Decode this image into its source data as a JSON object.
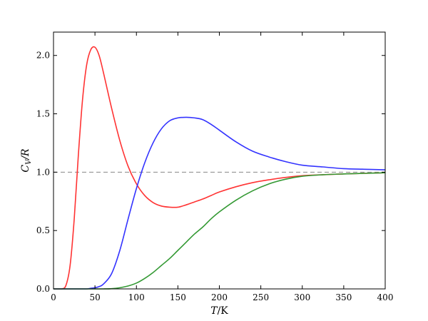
{
  "chart_data": {
    "type": "line",
    "xlabel": "T/K",
    "xlabel_parts": {
      "var": "T",
      "unit": "/K"
    },
    "ylabel": "C_V/R",
    "ylabel_parts": {
      "var": "C",
      "sub": "V",
      "tail": "/R"
    },
    "xlim": [
      0,
      400
    ],
    "ylim": [
      0,
      2.2
    ],
    "xticks": [
      0,
      50,
      100,
      150,
      200,
      250,
      300,
      350,
      400
    ],
    "xtick_labels": [
      "0",
      "50",
      "100",
      "150",
      "200",
      "250",
      "300",
      "350",
      "400"
    ],
    "yticks": [
      0.0,
      0.5,
      1.0,
      1.5,
      2.0
    ],
    "ytick_labels": [
      "0.0",
      "0.5",
      "1.0",
      "1.5",
      "2.0"
    ],
    "grid": false,
    "reference_line": {
      "y": 1.0,
      "color": "#888888",
      "style": "dashed"
    },
    "x": [
      0,
      10,
      15,
      20,
      25,
      30,
      35,
      40,
      45,
      50,
      55,
      60,
      70,
      80,
      90,
      100,
      110,
      120,
      130,
      140,
      150,
      160,
      170,
      180,
      190,
      200,
      220,
      240,
      260,
      280,
      300,
      325,
      350,
      375,
      400
    ],
    "series": [
      {
        "color": "#ff3333",
        "values": [
          0,
          0.0,
          0.03,
          0.2,
          0.6,
          1.15,
          1.62,
          1.92,
          2.05,
          2.07,
          2.0,
          1.86,
          1.55,
          1.27,
          1.05,
          0.9,
          0.8,
          0.74,
          0.71,
          0.7,
          0.7,
          0.72,
          0.745,
          0.77,
          0.8,
          0.83,
          0.875,
          0.91,
          0.935,
          0.955,
          0.97,
          0.978,
          0.985,
          0.99,
          0.995
        ]
      },
      {
        "color": "#3333ff",
        "values": [
          0,
          0,
          0,
          0,
          0,
          0,
          0,
          0.0,
          0.005,
          0.01,
          0.02,
          0.04,
          0.13,
          0.33,
          0.6,
          0.86,
          1.08,
          1.25,
          1.37,
          1.44,
          1.465,
          1.47,
          1.465,
          1.45,
          1.41,
          1.36,
          1.26,
          1.18,
          1.13,
          1.09,
          1.06,
          1.045,
          1.03,
          1.025,
          1.02
        ]
      },
      {
        "color": "#339933",
        "values": [
          0,
          0,
          0,
          0,
          0,
          0,
          0,
          0,
          0,
          0,
          0,
          0,
          0.002,
          0.01,
          0.025,
          0.05,
          0.09,
          0.14,
          0.2,
          0.26,
          0.33,
          0.4,
          0.47,
          0.53,
          0.6,
          0.66,
          0.76,
          0.84,
          0.9,
          0.94,
          0.965,
          0.978,
          0.985,
          0.99,
          0.995
        ]
      }
    ]
  }
}
